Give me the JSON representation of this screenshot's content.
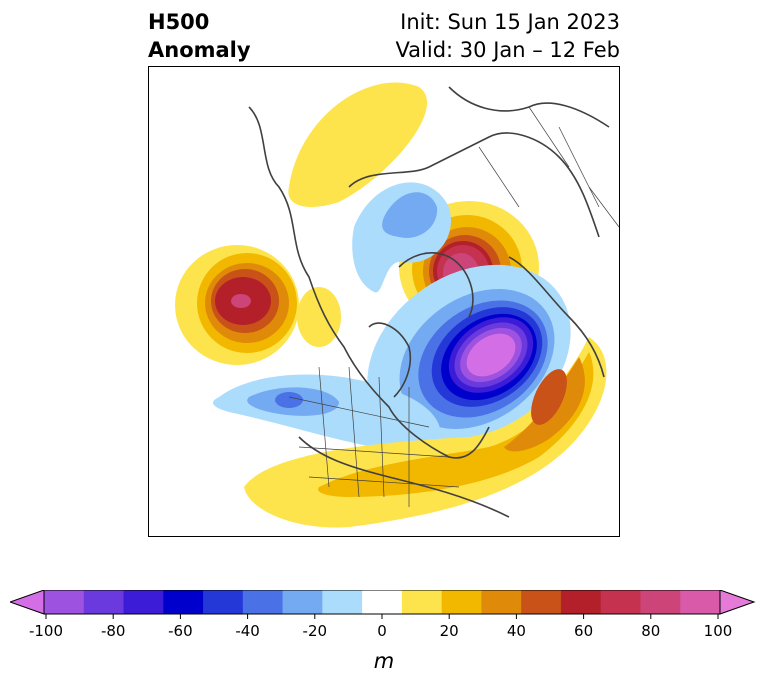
{
  "header": {
    "title_line1": "H500",
    "title_line2": "Anomaly",
    "init": "Init: Sun 15 Jan 2023",
    "valid": "Valid: 30 Jan – 12 Feb"
  },
  "colorbar": {
    "unit": "m",
    "tick_labels": [
      "-100",
      "-80",
      "-60",
      "-40",
      "-20",
      "0",
      "20",
      "40",
      "60",
      "80",
      "100"
    ],
    "colors": [
      "#d46ee6",
      "#9e52e0",
      "#6a3adf",
      "#3c1cd6",
      "#0000cc",
      "#2438d8",
      "#4a72e6",
      "#74aaf2",
      "#acdcfc",
      "#ffffff",
      "#fde44c",
      "#f2b800",
      "#e08a0a",
      "#c85218",
      "#b4202a",
      "#c43250",
      "#cc4478",
      "#d85aa8",
      "#e67ad8"
    ]
  },
  "map": {
    "features": [
      "H500 anomaly shading",
      "coastlines",
      "country borders",
      "US state boundaries"
    ]
  }
}
